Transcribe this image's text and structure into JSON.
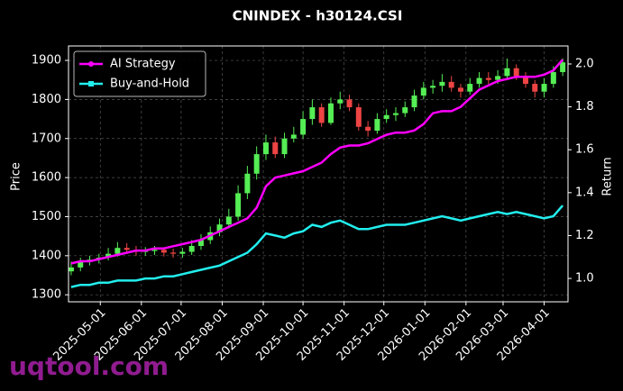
{
  "chart_data": {
    "type": "candlestick",
    "title": "CNINDEX - h30124.CSI",
    "ylabel": "Price",
    "y2label": "Return",
    "x": [
      "2025-04-09",
      "2025-04-16",
      "2025-04-23",
      "2025-04-30",
      "2025-05-07",
      "2025-05-14",
      "2025-05-21",
      "2025-05-28",
      "2025-06-04",
      "2025-06-11",
      "2025-06-18",
      "2025-06-25",
      "2025-07-02",
      "2025-07-09",
      "2025-07-16",
      "2025-07-23",
      "2025-07-30",
      "2025-08-06",
      "2025-08-13",
      "2025-08-20",
      "2025-08-27",
      "2025-09-03",
      "2025-09-10",
      "2025-09-17",
      "2025-09-24",
      "2025-10-01",
      "2025-10-08",
      "2025-10-15",
      "2025-10-22",
      "2025-10-29",
      "2025-11-05",
      "2025-11-12",
      "2025-11-19",
      "2025-11-26",
      "2025-12-03",
      "2025-12-10",
      "2025-12-17",
      "2025-12-24",
      "2025-12-31",
      "2026-01-07",
      "2026-01-14",
      "2026-01-21",
      "2026-01-28",
      "2026-02-04",
      "2026-02-11",
      "2026-02-18",
      "2026-02-25",
      "2026-03-04",
      "2026-03-11",
      "2026-03-18",
      "2026-03-25",
      "2026-04-01",
      "2026-04-08",
      "2026-04-15"
    ],
    "open": [
      1360,
      1370,
      1385,
      1390,
      1395,
      1405,
      1420,
      1415,
      1410,
      1412,
      1415,
      1408,
      1405,
      1410,
      1425,
      1440,
      1460,
      1480,
      1500,
      1560,
      1610,
      1660,
      1690,
      1660,
      1700,
      1710,
      1750,
      1780,
      1740,
      1790,
      1800,
      1780,
      1730,
      1720,
      1750,
      1760,
      1765,
      1780,
      1810,
      1830,
      1835,
      1845,
      1830,
      1820,
      1840,
      1855,
      1850,
      1860,
      1880,
      1860,
      1840,
      1820,
      1840,
      1870
    ],
    "high": [
      1385,
      1395,
      1400,
      1405,
      1420,
      1435,
      1432,
      1425,
      1422,
      1425,
      1420,
      1418,
      1420,
      1440,
      1455,
      1475,
      1495,
      1520,
      1580,
      1630,
      1680,
      1710,
      1705,
      1715,
      1730,
      1770,
      1800,
      1790,
      1805,
      1820,
      1812,
      1790,
      1745,
      1765,
      1775,
      1780,
      1795,
      1825,
      1845,
      1850,
      1865,
      1860,
      1840,
      1855,
      1870,
      1870,
      1875,
      1905,
      1890,
      1870,
      1850,
      1855,
      1885,
      1905
    ],
    "low": [
      1350,
      1360,
      1375,
      1380,
      1388,
      1398,
      1405,
      1400,
      1400,
      1402,
      1398,
      1395,
      1395,
      1402,
      1415,
      1430,
      1450,
      1470,
      1490,
      1545,
      1595,
      1645,
      1650,
      1650,
      1690,
      1700,
      1735,
      1730,
      1735,
      1775,
      1770,
      1720,
      1705,
      1712,
      1740,
      1745,
      1755,
      1770,
      1800,
      1815,
      1820,
      1820,
      1805,
      1812,
      1830,
      1840,
      1840,
      1850,
      1850,
      1830,
      1805,
      1805,
      1830,
      1860
    ],
    "close": [
      1370,
      1385,
      1390,
      1395,
      1405,
      1420,
      1415,
      1410,
      1412,
      1415,
      1408,
      1405,
      1410,
      1425,
      1440,
      1460,
      1480,
      1500,
      1560,
      1610,
      1660,
      1690,
      1660,
      1700,
      1710,
      1750,
      1780,
      1740,
      1790,
      1800,
      1780,
      1730,
      1720,
      1750,
      1760,
      1765,
      1780,
      1810,
      1830,
      1835,
      1845,
      1830,
      1820,
      1840,
      1855,
      1850,
      1860,
      1880,
      1860,
      1840,
      1820,
      1840,
      1870,
      1895
    ],
    "up_color": "#55ee55",
    "down_color": "#ee4444",
    "series": [
      {
        "name": "AI Strategy",
        "color": "#ff00ff",
        "axis": "y2",
        "marker": "circle",
        "values": [
          1.07,
          1.08,
          1.08,
          1.09,
          1.1,
          1.11,
          1.12,
          1.13,
          1.13,
          1.14,
          1.14,
          1.15,
          1.16,
          1.17,
          1.18,
          1.2,
          1.22,
          1.24,
          1.26,
          1.28,
          1.33,
          1.43,
          1.47,
          1.48,
          1.49,
          1.5,
          1.52,
          1.54,
          1.58,
          1.61,
          1.62,
          1.62,
          1.63,
          1.65,
          1.67,
          1.68,
          1.68,
          1.69,
          1.72,
          1.77,
          1.78,
          1.78,
          1.8,
          1.84,
          1.88,
          1.9,
          1.92,
          1.93,
          1.94,
          1.94,
          1.94,
          1.95,
          1.97,
          2.02
        ]
      },
      {
        "name": "Buy-and-Hold",
        "color": "#22eeee",
        "axis": "y2",
        "marker": "square",
        "values": [
          0.96,
          0.97,
          0.97,
          0.98,
          0.98,
          0.99,
          0.99,
          0.99,
          1.0,
          1.0,
          1.01,
          1.01,
          1.02,
          1.03,
          1.04,
          1.05,
          1.06,
          1.08,
          1.1,
          1.12,
          1.16,
          1.21,
          1.2,
          1.19,
          1.21,
          1.22,
          1.25,
          1.24,
          1.26,
          1.27,
          1.25,
          1.23,
          1.23,
          1.24,
          1.25,
          1.25,
          1.25,
          1.26,
          1.27,
          1.28,
          1.29,
          1.28,
          1.27,
          1.28,
          1.29,
          1.3,
          1.31,
          1.3,
          1.31,
          1.3,
          1.29,
          1.28,
          1.29,
          1.34
        ]
      }
    ],
    "xlim": [
      "2025-04-07",
      "2026-04-19"
    ],
    "xticks": [
      "2025-05-01",
      "2025-06-01",
      "2025-07-01",
      "2025-08-01",
      "2025-09-01",
      "2025-10-01",
      "2025-11-01",
      "2025-12-01",
      "2026-01-01",
      "2026-02-01",
      "2026-03-01",
      "2026-04-01"
    ],
    "ylim": [
      1282,
      1937
    ],
    "yticks": [
      1300,
      1400,
      1500,
      1600,
      1700,
      1800,
      1900
    ],
    "y2lim": [
      0.891,
      2.084
    ],
    "y2ticks": [
      {
        "value": 1,
        "label": "1.0"
      },
      1.2,
      1.4,
      1.6,
      1.8,
      {
        "value": 2,
        "label": "2.0"
      }
    ],
    "grid": true,
    "legend": "upper left",
    "watermark": "uqtool.com"
  }
}
